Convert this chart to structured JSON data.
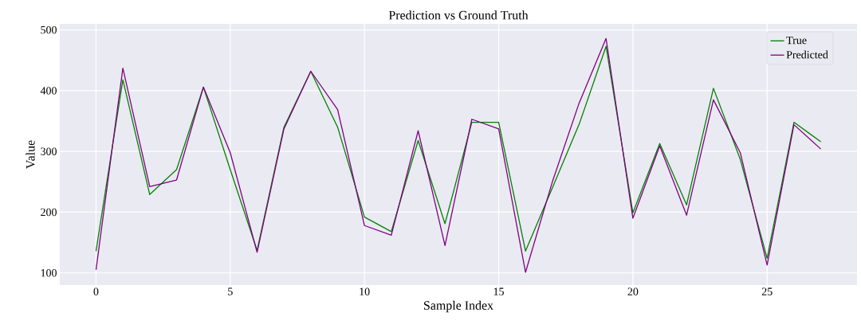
{
  "chart_data": {
    "type": "line",
    "title": "Prediction vs Ground Truth",
    "xlabel": "Sample Index",
    "ylabel": "Value",
    "x": [
      0,
      1,
      2,
      3,
      4,
      5,
      6,
      7,
      8,
      9,
      10,
      11,
      12,
      13,
      14,
      15,
      16,
      17,
      18,
      19,
      20,
      21,
      22,
      23,
      24,
      25,
      26,
      27
    ],
    "series": [
      {
        "name": "True",
        "color": "#008000",
        "values": [
          136,
          418,
          229,
          270,
          406,
          270,
          137,
          340,
          432,
          340,
          192,
          168,
          318,
          181,
          348,
          348,
          136,
          240,
          345,
          473,
          199,
          313,
          212,
          404,
          287,
          124,
          348,
          316
        ]
      },
      {
        "name": "Predicted",
        "color": "#800080",
        "values": [
          105,
          437,
          242,
          253,
          406,
          298,
          134,
          337,
          432,
          369,
          178,
          162,
          334,
          145,
          353,
          337,
          101,
          250,
          380,
          486,
          190,
          309,
          195,
          385,
          298,
          113,
          344,
          304
        ]
      }
    ],
    "xlim": [
      -1.35,
      28.35
    ],
    "ylim": [
      80,
      510
    ],
    "xticks": [
      0,
      5,
      10,
      15,
      20,
      25
    ],
    "yticks": [
      100,
      200,
      300,
      400,
      500
    ],
    "grid": true,
    "legend": "top right",
    "marker": "none",
    "line_style": "solid"
  }
}
